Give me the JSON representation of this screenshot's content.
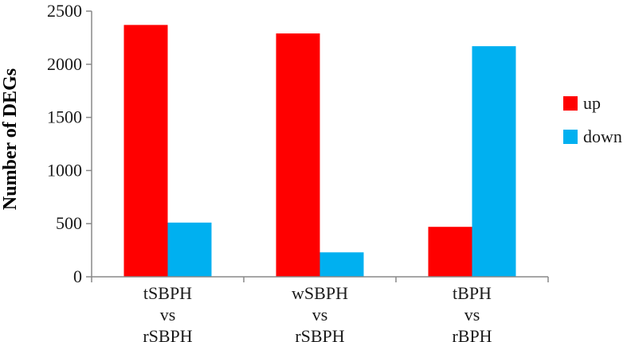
{
  "chart_data": {
    "type": "bar",
    "title": "",
    "xlabel": "",
    "ylabel": "Number of DEGs",
    "ylim": [
      0,
      2500
    ],
    "yticks": [
      0,
      500,
      1000,
      1500,
      2000,
      2500
    ],
    "categories": [
      [
        "tSBPH",
        "vs",
        "rSBPH"
      ],
      [
        "wSBPH",
        "vs",
        "rSBPH"
      ],
      [
        "tBPH",
        "vs",
        "rBPH"
      ]
    ],
    "series": [
      {
        "name": "up",
        "color": "#ff0000",
        "values": [
          2370,
          2290,
          470
        ]
      },
      {
        "name": "down",
        "color": "#00b0f0",
        "values": [
          510,
          230,
          2170
        ]
      }
    ],
    "grid": false,
    "legend_position": "right"
  }
}
